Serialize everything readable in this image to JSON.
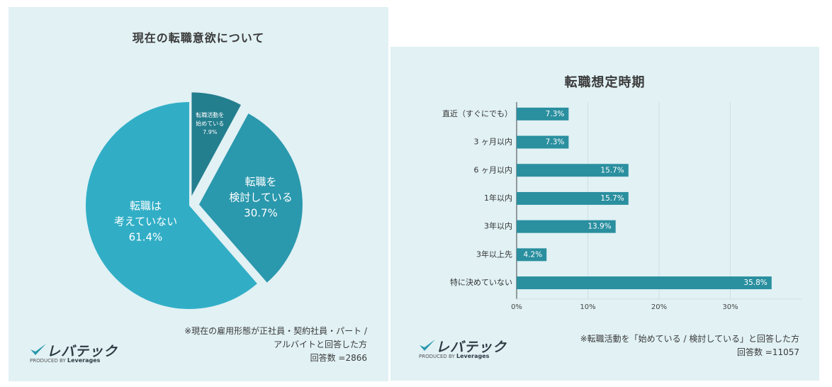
{
  "colors": {
    "panel_bg": "#e1f1f4",
    "pie_large": "#31aec6",
    "pie_medium": "#2a98ad",
    "pie_small": "#237e8e",
    "bar": "#2a8f9f",
    "grid": "#cfdfe3",
    "axis": "#444444",
    "logo_check": "#2a98ad"
  },
  "left": {
    "title": "現在の転職意欲について",
    "logo": {
      "text": "レバテック",
      "produced_by": "PRODUCED BY",
      "brand": "Leverages"
    },
    "note_lines": [
      "※現在の雇用形態が正社員・契約社員・パート /",
      "アルバイトと回答した方",
      "回答数 =2866"
    ]
  },
  "right": {
    "title": "転職想定時期",
    "logo": {
      "text": "レバテック",
      "produced_by": "PRODUCED BY",
      "brand": "Leverages"
    },
    "note_lines": [
      "※転職活動を「始めている / 検討している」と回答した方",
      "回答数 =11057"
    ]
  },
  "chart_data": [
    {
      "type": "pie",
      "title": "現在の転職意欲について",
      "slices": [
        {
          "label_lines": [
            "転職活動を",
            "始めている"
          ],
          "value": 7.9,
          "value_label": "7.9%",
          "color": "#237e8e",
          "exploded": true
        },
        {
          "label_lines": [
            "転職を",
            "検討している"
          ],
          "value": 30.7,
          "value_label": "30.7%",
          "color": "#2a98ad",
          "exploded": true
        },
        {
          "label_lines": [
            "転職は",
            "考えていない"
          ],
          "value": 61.4,
          "value_label": "61.4%",
          "color": "#31aec6",
          "exploded": false
        }
      ],
      "start": "top",
      "direction": "clockwise"
    },
    {
      "type": "bar",
      "orientation": "horizontal",
      "title": "転職想定時期",
      "categories": [
        "直近（すぐにでも）",
        "3 ヶ月以内",
        "6 ヶ月以内",
        "1年以内",
        "3年以内",
        "3年以上先",
        "特に決めていない"
      ],
      "values": [
        7.3,
        7.3,
        15.7,
        15.7,
        13.9,
        4.2,
        35.8
      ],
      "value_labels": [
        "7.3%",
        "7.3%",
        "15.7%",
        "15.7%",
        "13.9%",
        "4.2%",
        "35.8%"
      ],
      "xlim": [
        0,
        40
      ],
      "xticks": [
        0,
        10,
        20,
        30
      ],
      "xtick_labels": [
        "0%",
        "10%",
        "20%",
        "30%"
      ],
      "grid": true,
      "color": "#2a8f9f"
    }
  ]
}
